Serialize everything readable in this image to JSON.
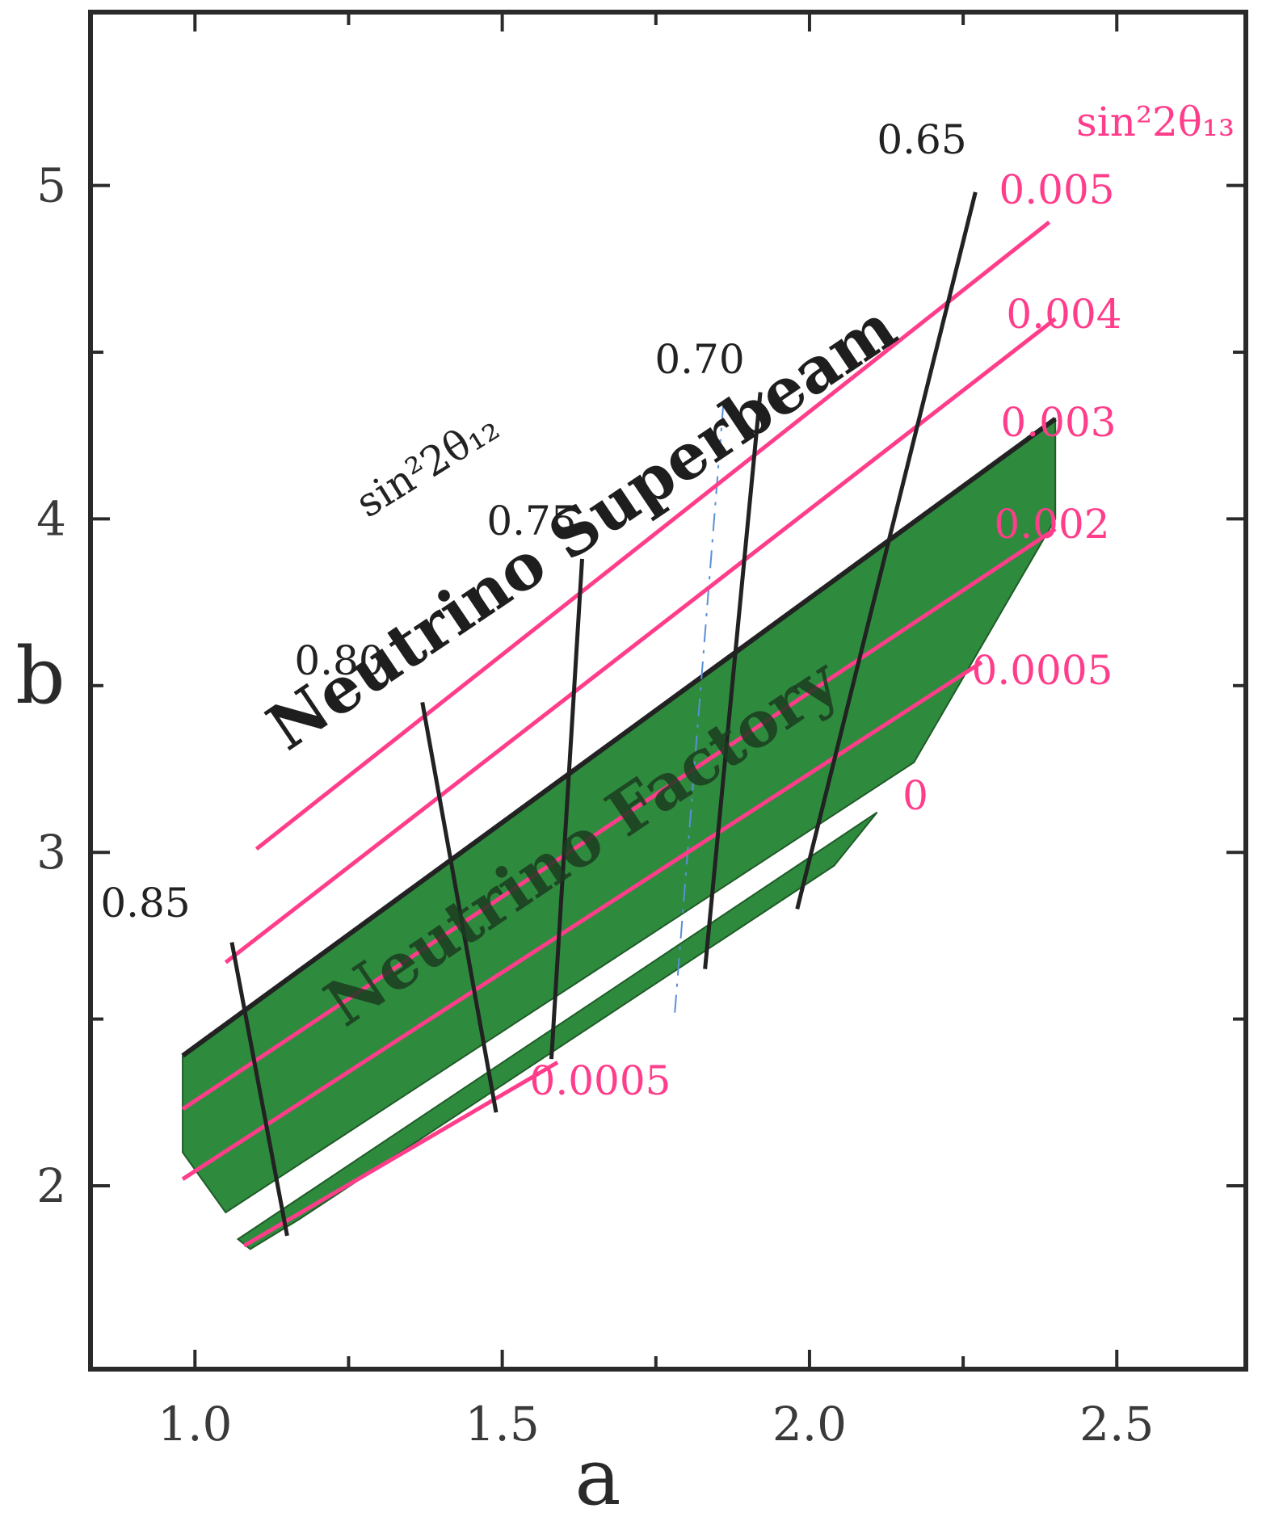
{
  "chart_data": {
    "type": "area",
    "xlabel": "a",
    "ylabel": "b",
    "xlim": [
      0.83,
      2.71
    ],
    "ylim": [
      1.45,
      5.52
    ],
    "xticks": [
      {
        "v": 1.0,
        "label": "1.0"
      },
      {
        "v": 1.5,
        "label": "1.5"
      },
      {
        "v": 2.0,
        "label": "2.0"
      },
      {
        "v": 2.5,
        "label": "2.5"
      }
    ],
    "yticks": [
      {
        "v": 2,
        "label": "2"
      },
      {
        "v": 3,
        "label": "3"
      },
      {
        "v": 4,
        "label": "4"
      },
      {
        "v": 5,
        "label": "5"
      }
    ],
    "x_minor_ticks": [
      1.25,
      1.75,
      2.25
    ],
    "y_minor_ticks": [
      2.5,
      3.5,
      4.5
    ],
    "colors": {
      "region_fill": "#2e8b3e",
      "region_edge": "#1f5c28",
      "theta13_line": "#ff3d8b",
      "theta12_line": "#222222",
      "dashed_line": "#5a8fd8",
      "superbeam_edge": "#222222",
      "frame": "#2a2a2a"
    },
    "regions": [
      {
        "label": "Neutrino Factory",
        "points": [
          [
            0.98,
            2.39
          ],
          [
            2.4,
            4.3
          ],
          [
            2.4,
            4.0
          ],
          [
            2.17,
            3.27
          ],
          [
            1.05,
            1.92
          ],
          [
            0.98,
            2.1
          ]
        ]
      },
      {
        "label": "",
        "points": [
          [
            1.07,
            1.84
          ],
          [
            2.11,
            3.12
          ],
          [
            2.04,
            2.96
          ],
          [
            1.17,
            1.9
          ],
          [
            1.09,
            1.81
          ]
        ]
      }
    ],
    "superbeam_boundary": {
      "x": [
        0.98,
        2.4
      ],
      "y": [
        2.39,
        4.3
      ]
    },
    "theta13_title": "sin²2θ₁₃",
    "theta13_lines": [
      {
        "label": "0.005",
        "x": [
          1.1,
          2.39
        ],
        "y": [
          3.01,
          4.89
        ]
      },
      {
        "label": "0.004",
        "x": [
          1.05,
          2.4
        ],
        "y": [
          2.67,
          4.6
        ]
      },
      {
        "label": "0.003",
        "x": [],
        "y": []
      },
      {
        "label": "0.002",
        "x": [
          0.98,
          2.4
        ],
        "y": [
          2.23,
          3.97
        ]
      },
      {
        "label": "0.0005",
        "x": [
          0.98,
          2.28
        ],
        "y": [
          2.02,
          3.57
        ]
      },
      {
        "label": "0",
        "x": [],
        "y": []
      },
      {
        "label": "0.0005",
        "x": [
          1.08,
          1.59
        ],
        "y": [
          1.82,
          2.37
        ]
      }
    ],
    "theta12_title": "sin²2θ₁₂",
    "theta12_lines": [
      {
        "label": "0.85",
        "x": [
          1.06,
          1.15
        ],
        "y": [
          2.73,
          1.85
        ]
      },
      {
        "label": "0.80",
        "x": [
          1.37,
          1.49
        ],
        "y": [
          3.45,
          2.22
        ]
      },
      {
        "label": "0.75",
        "x": [
          1.63,
          1.58
        ],
        "y": [
          3.88,
          2.38
        ]
      },
      {
        "label": "0.70",
        "x": [
          1.92,
          1.83
        ],
        "y": [
          4.38,
          2.65
        ]
      },
      {
        "label": "0.65",
        "x": [
          2.27,
          1.98
        ],
        "y": [
          4.98,
          2.83
        ]
      }
    ],
    "dashed_line": {
      "x": [
        1.86,
        1.78
      ],
      "y": [
        4.35,
        2.5
      ]
    },
    "annotations": [
      "Neutrino Superbeam",
      "Neutrino Factory"
    ]
  }
}
